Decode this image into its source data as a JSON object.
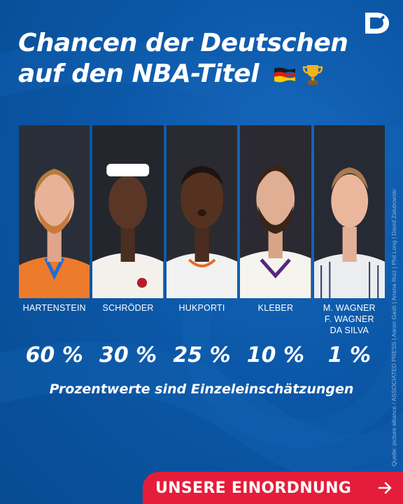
{
  "headline": {
    "line1": "Chancen der Deutschen",
    "line2": "auf den NBA-Titel",
    "emojis": [
      "flag-germany-icon",
      "trophy-icon"
    ]
  },
  "players": [
    {
      "name_lines": [
        "HARTENSTEIN"
      ],
      "percent": "60 %",
      "jersey": "#ee7a2c"
    },
    {
      "name_lines": [
        "SCHRÖDER"
      ],
      "percent": "30 %",
      "jersey": "#f4f1ec"
    },
    {
      "name_lines": [
        "HUKPORTI"
      ],
      "percent": "25 %",
      "jersey": "#f2f2f2"
    },
    {
      "name_lines": [
        "KLEBER"
      ],
      "percent": "10 %",
      "jersey": "#f6f4ee"
    },
    {
      "name_lines": [
        "M. WAGNER",
        "F. WAGNER",
        "DA SILVA"
      ],
      "percent": "1 %",
      "jersey": "#ecedef"
    }
  ],
  "note": "Prozentwerte sind Einzeleinschätzungen",
  "credit": "Quelle: picture alliance / ASSOCIATED PRESS | Aaron Gash | Ariana Ruiz | Phil Long | David Zalubowski",
  "cta": {
    "label": "UNSERE EINORDNUNG",
    "arrow": "arrow-right-icon"
  },
  "colors": {
    "background": "#0b57a7",
    "accent": "#e51d3a",
    "text": "#ffffff"
  }
}
